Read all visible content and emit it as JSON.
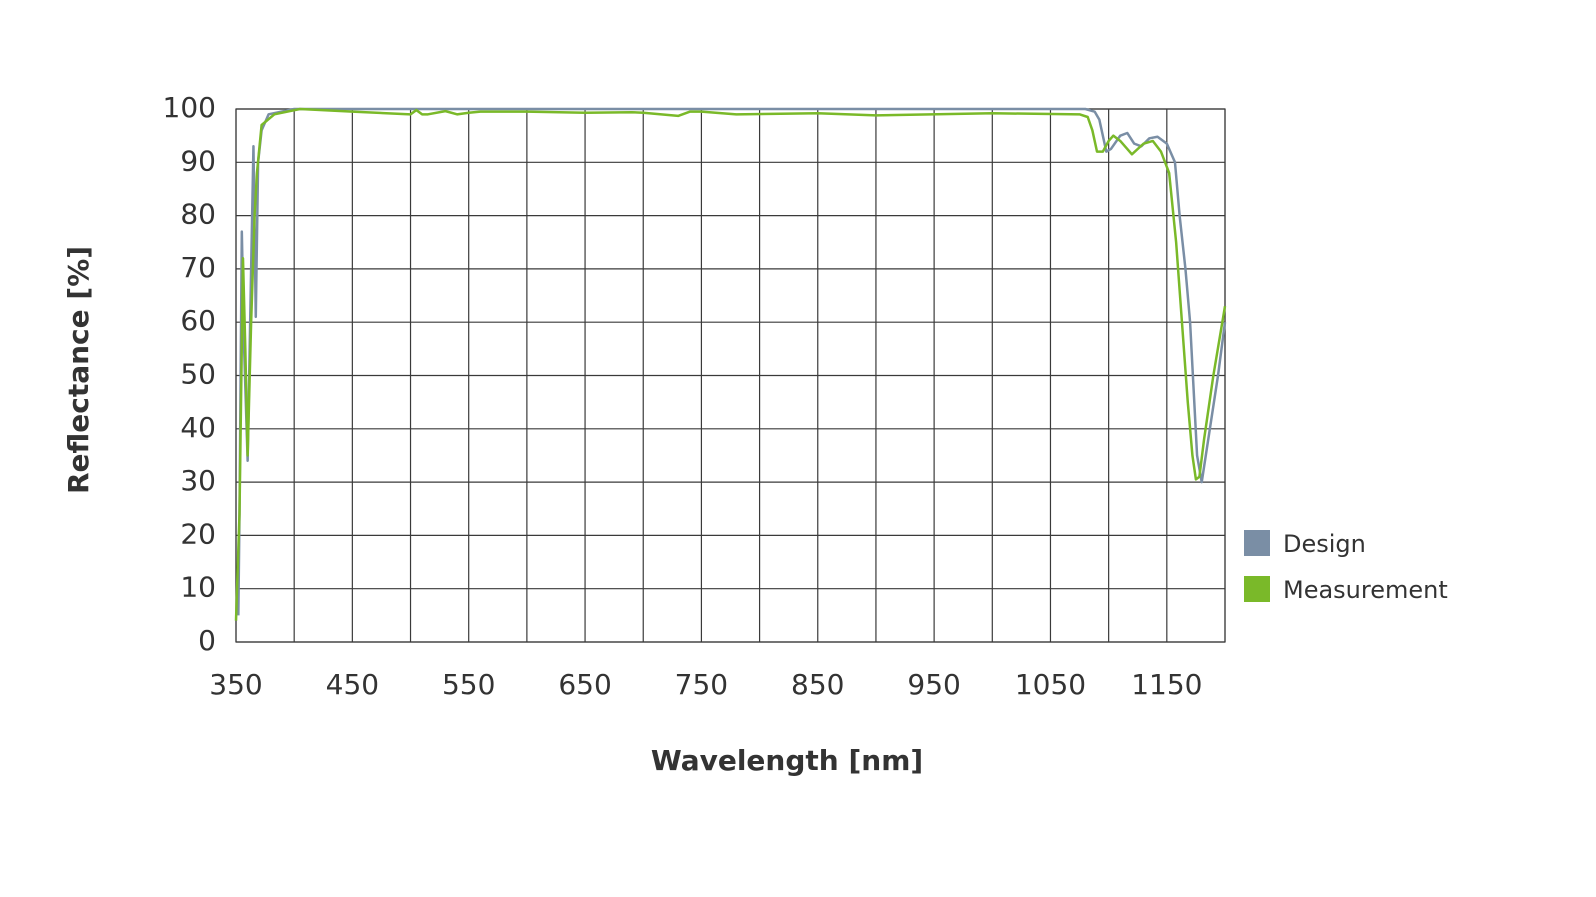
{
  "chart_data": {
    "type": "line",
    "xlabel": "Wavelength [nm]",
    "ylabel": "Reflectance [%]",
    "xlim": [
      350,
      1200
    ],
    "ylim": [
      0,
      100
    ],
    "xticks": [
      350,
      450,
      550,
      650,
      750,
      850,
      950,
      1050,
      1150
    ],
    "x_grid_ticks": [
      350,
      400,
      450,
      500,
      550,
      600,
      650,
      700,
      750,
      800,
      850,
      900,
      950,
      1000,
      1050,
      1100,
      1150,
      1200
    ],
    "yticks": [
      0,
      10,
      20,
      30,
      40,
      50,
      60,
      70,
      80,
      90,
      100
    ],
    "grid": true,
    "legend": "right",
    "series": [
      {
        "name": "Design",
        "color": "#7a8ea5",
        "x": [
          352,
          353,
          355,
          357,
          360,
          363,
          365,
          367,
          369,
          372,
          378,
          400,
          500,
          600,
          700,
          800,
          900,
          1000,
          1080,
          1088,
          1092,
          1095,
          1098,
          1102,
          1110,
          1116,
          1122,
          1128,
          1135,
          1142,
          1150,
          1157,
          1161,
          1166,
          1170,
          1176,
          1180,
          1187,
          1194,
          1200
        ],
        "values": [
          5,
          24,
          77,
          55,
          34,
          70,
          93,
          61,
          90,
          96,
          99,
          100,
          100,
          100,
          100,
          100,
          100,
          100,
          100,
          99.5,
          98,
          95,
          92,
          92.5,
          95,
          95.5,
          93.5,
          93,
          94.5,
          94.8,
          93.5,
          90,
          80,
          70,
          60,
          35,
          30,
          40,
          50,
          60
        ]
      },
      {
        "name": "Measurement",
        "color": "#7ab929",
        "x": [
          350,
          353,
          356,
          358,
          360,
          363,
          366,
          368,
          372,
          383,
          405,
          450,
          500,
          505,
          510,
          515,
          530,
          540,
          550,
          560,
          600,
          650,
          690,
          700,
          730,
          740,
          750,
          780,
          850,
          900,
          1000,
          1075,
          1082,
          1086,
          1090,
          1095,
          1100,
          1104,
          1110,
          1120,
          1130,
          1138,
          1145,
          1152,
          1158,
          1163,
          1168,
          1172,
          1175,
          1178,
          1182,
          1190,
          1200
        ],
        "values": [
          4,
          24,
          72,
          55,
          35,
          60,
          80,
          88,
          97,
          99,
          100,
          99.5,
          99,
          99.8,
          99,
          99,
          99.6,
          99,
          99.3,
          99.5,
          99.5,
          99.3,
          99.4,
          99.3,
          98.7,
          99.5,
          99.5,
          99,
          99.2,
          98.8,
          99.2,
          99,
          98.5,
          96,
          92,
          92,
          94,
          95,
          94,
          91.5,
          93.5,
          94,
          92,
          88,
          75,
          60,
          45,
          35,
          30.5,
          31,
          38,
          50,
          63
        ]
      }
    ]
  }
}
